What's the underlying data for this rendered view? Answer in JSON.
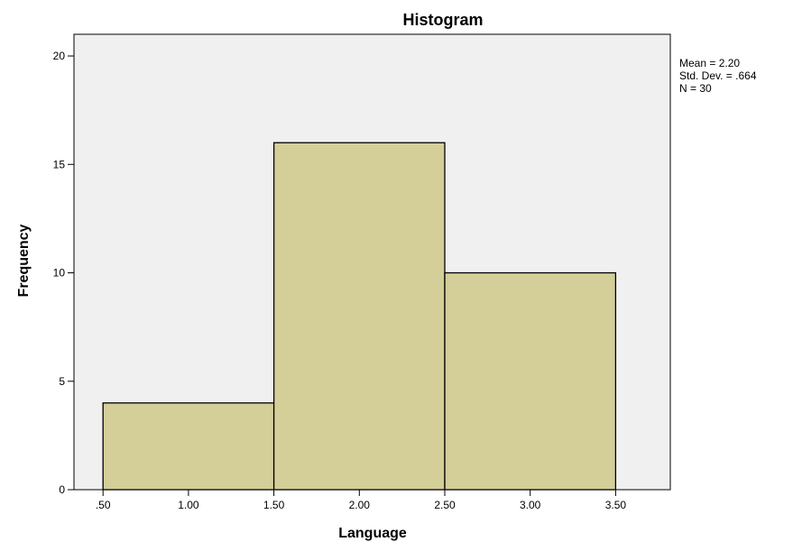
{
  "chart_data": {
    "type": "bar",
    "title": "Histogram",
    "xlabel": "Language",
    "ylabel": "Frequency",
    "bins": [
      {
        "from": 0.5,
        "to": 1.5,
        "value": 4
      },
      {
        "from": 1.5,
        "to": 2.5,
        "value": 16
      },
      {
        "from": 2.5,
        "to": 3.5,
        "value": 10
      }
    ],
    "xlim": [
      0.33,
      3.82
    ],
    "ylim": [
      0,
      21
    ],
    "x_ticks": [
      {
        "value": 0.5,
        "label": ".50"
      },
      {
        "value": 1.0,
        "label": "1.00"
      },
      {
        "value": 1.5,
        "label": "1.50"
      },
      {
        "value": 2.0,
        "label": "2.00"
      },
      {
        "value": 2.5,
        "label": "2.50"
      },
      {
        "value": 3.0,
        "label": "3.00"
      },
      {
        "value": 3.5,
        "label": "3.50"
      }
    ],
    "y_ticks": [
      {
        "value": 0,
        "label": "0"
      },
      {
        "value": 5,
        "label": "5"
      },
      {
        "value": 10,
        "label": "10"
      },
      {
        "value": 15,
        "label": "15"
      },
      {
        "value": 20,
        "label": "20"
      }
    ],
    "stats": {
      "mean": "Mean = 2.20",
      "std_dev": "Std. Dev. = .664",
      "n": "N = 30"
    },
    "grid": false,
    "colors": {
      "bar_fill": "#d4ce99",
      "bar_stroke": "#000000",
      "plot_background": "#f0f0f0",
      "page_background": "#ffffff"
    }
  }
}
